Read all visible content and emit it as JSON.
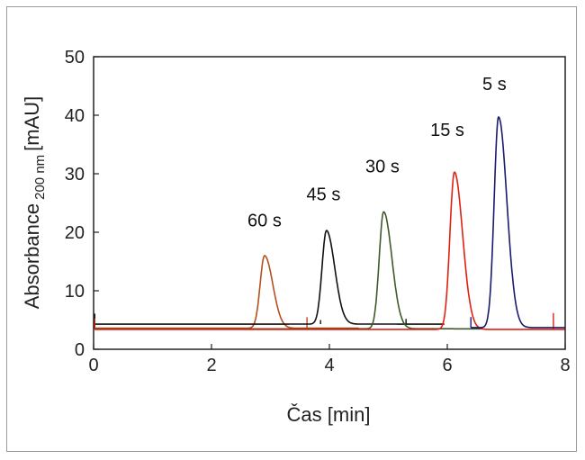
{
  "chart_data": {
    "type": "line",
    "xlabel": "Čas [min]",
    "ylabel_main": "Absorbance",
    "ylabel_sub": "200 nm",
    "ylabel_unit": "[mAU]",
    "xlim": [
      0,
      8
    ],
    "ylim": [
      0,
      50
    ],
    "x_ticks": [
      "0",
      "2",
      "4",
      "6",
      "8"
    ],
    "y_ticks": [
      "0",
      "10",
      "20",
      "30",
      "40",
      "50"
    ],
    "grid": false,
    "series": [
      {
        "name": "60 s",
        "color": "#b4501e",
        "baseline": 3.6,
        "peak_x": 2.9,
        "peak_y": 16.0,
        "x": [
          0.02,
          4.5
        ],
        "spikes": [
          [
            3.62,
            5.5
          ]
        ]
      },
      {
        "name": "45 s",
        "color": "#111111",
        "baseline": 4.3,
        "peak_x": 3.95,
        "peak_y": 20.3,
        "x": [
          0.02,
          5.95
        ],
        "spikes": [
          [
            3.85,
            5.0
          ],
          [
            5.3,
            5.2
          ]
        ]
      },
      {
        "name": "30 s",
        "color": "#3d5a2a",
        "baseline": 3.5,
        "peak_x": 4.92,
        "peak_y": 23.5,
        "x": [
          0.02,
          6.6
        ],
        "spikes": []
      },
      {
        "name": "15 s",
        "color": "#e02010",
        "baseline": 3.4,
        "peak_x": 6.12,
        "peak_y": 30.3,
        "x": [
          0.02,
          8.0
        ],
        "spikes": [
          [
            7.8,
            6.2
          ]
        ]
      },
      {
        "name": "5 s",
        "color": "#1a1a6e",
        "baseline": 3.7,
        "peak_x": 6.87,
        "peak_y": 39.7,
        "x": [
          6.4,
          8.0
        ],
        "spikes": []
      }
    ],
    "annotations": [
      {
        "text": "60 s",
        "x": 2.9,
        "y": 21.0
      },
      {
        "text": "45 s",
        "x": 3.9,
        "y": 25.5
      },
      {
        "text": "30 s",
        "x": 4.9,
        "y": 30.2
      },
      {
        "text": "15 s",
        "x": 6.0,
        "y": 36.5
      },
      {
        "text": "5 s",
        "x": 6.8,
        "y": 44.3
      }
    ]
  }
}
